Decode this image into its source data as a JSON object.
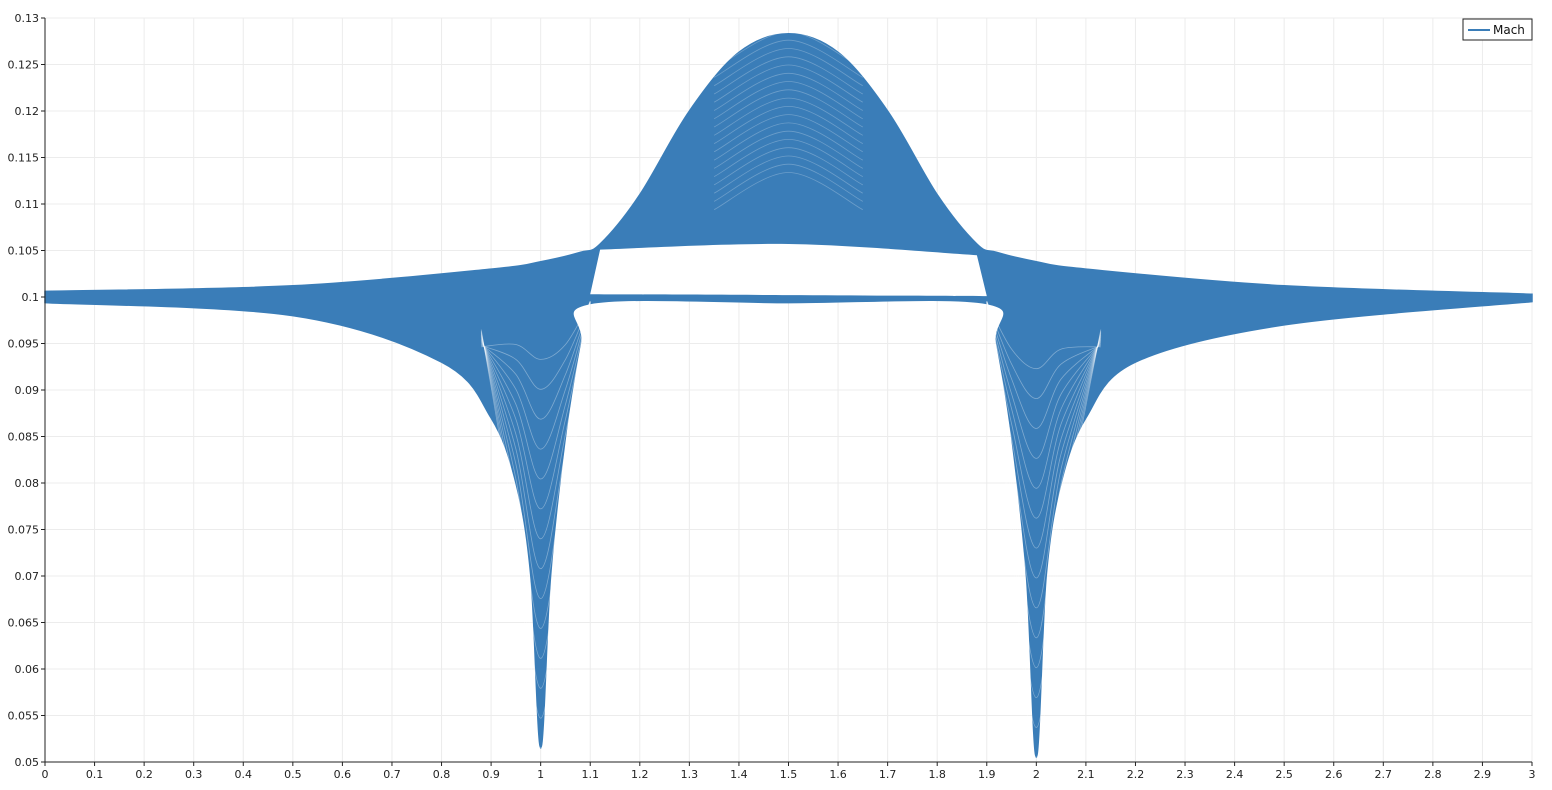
{
  "chart_data": {
    "type": "line",
    "title": "",
    "xlabel": "",
    "ylabel": "",
    "xlim": [
      0,
      3
    ],
    "ylim": [
      0.05,
      0.13
    ],
    "grid": true,
    "legend_position": "top-right",
    "x_ticks": [
      "0",
      "0.1",
      "0.2",
      "0.3",
      "0.4",
      "0.5",
      "0.6",
      "0.7",
      "0.8",
      "0.9",
      "1",
      "1.1",
      "1.2",
      "1.3",
      "1.4",
      "1.5",
      "1.6",
      "1.7",
      "1.8",
      "1.9",
      "2",
      "2.1",
      "2.2",
      "2.3",
      "2.4",
      "2.5",
      "2.6",
      "2.7",
      "2.8",
      "2.9",
      "3"
    ],
    "y_ticks": [
      "0.05",
      "0.055",
      "0.06",
      "0.065",
      "0.07",
      "0.075",
      "0.08",
      "0.085",
      "0.09",
      "0.095",
      "0.1",
      "0.105",
      "0.11",
      "0.115",
      "0.12",
      "0.125",
      "0.13"
    ],
    "series": [
      {
        "name": "Mach",
        "color": "#3a7db8",
        "description_points": {
          "upper_edge": [
            [
              0,
              0.1006
            ],
            [
              0.5,
              0.1012
            ],
            [
              0.9,
              0.103
            ],
            [
              1.0,
              0.1038
            ],
            [
              1.08,
              0.1048
            ],
            [
              1.12,
              0.1057
            ],
            [
              1.2,
              0.111
            ],
            [
              1.3,
              0.12
            ],
            [
              1.4,
              0.1263
            ],
            [
              1.5,
              0.1283
            ],
            [
              1.6,
              0.1263
            ],
            [
              1.7,
              0.12
            ],
            [
              1.8,
              0.111
            ],
            [
              1.88,
              0.1057
            ],
            [
              1.92,
              0.1048
            ],
            [
              2.0,
              0.1038
            ],
            [
              2.1,
              0.103
            ],
            [
              2.5,
              0.1012
            ],
            [
              3.0,
              0.1003
            ]
          ],
          "lower_edge": [
            [
              0,
              0.0994
            ],
            [
              0.5,
              0.098
            ],
            [
              0.8,
              0.093
            ],
            [
              0.9,
              0.087
            ],
            [
              0.95,
              0.08
            ],
            [
              0.98,
              0.07
            ],
            [
              1.0,
              0.0515
            ],
            [
              1.02,
              0.07
            ],
            [
              1.05,
              0.085
            ],
            [
              1.08,
              0.095
            ],
            [
              1.1,
              0.0993
            ],
            [
              1.5,
              0.0994
            ],
            [
              1.9,
              0.0993
            ],
            [
              1.92,
              0.095
            ],
            [
              1.95,
              0.085
            ],
            [
              1.98,
              0.07
            ],
            [
              2.0,
              0.0505
            ],
            [
              2.02,
              0.07
            ],
            [
              2.05,
              0.08
            ],
            [
              2.1,
              0.087
            ],
            [
              2.2,
              0.093
            ],
            [
              2.5,
              0.097
            ],
            [
              3.0,
              0.0995
            ]
          ],
          "inner_gap_top": [
            [
              1.12,
              0.1051
            ],
            [
              1.5,
              0.1057
            ],
            [
              1.88,
              0.1045
            ]
          ],
          "inner_gap_bottom": [
            [
              1.1,
              0.1003
            ],
            [
              1.5,
              0.1002
            ],
            [
              1.9,
              0.1001
            ]
          ]
        }
      }
    ]
  }
}
